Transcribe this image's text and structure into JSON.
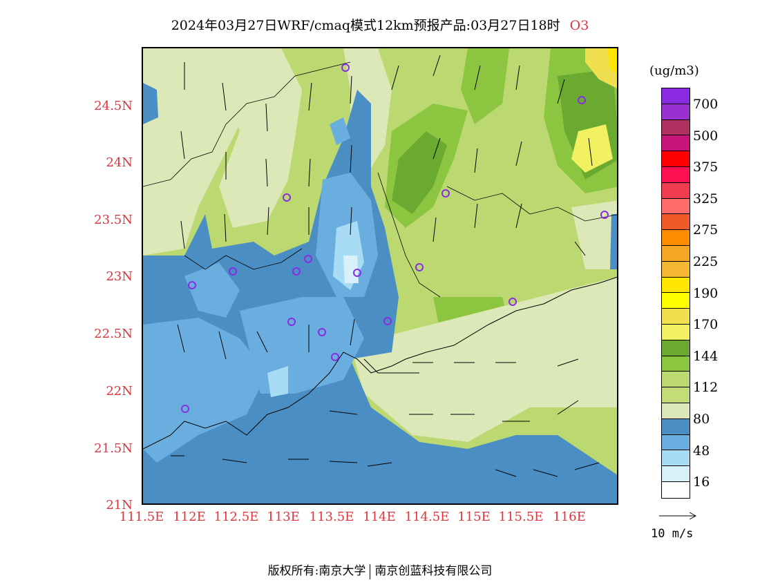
{
  "title": {
    "main": "2024年03月27日WRF/cmaq模式12km预报产品:03月27日18时",
    "species": "O3"
  },
  "axes": {
    "y_labels": [
      "24.5N",
      "24N",
      "23.5N",
      "23N",
      "22.5N",
      "22N",
      "21.5N",
      "21N"
    ],
    "x_labels": [
      "111.5E",
      "112E",
      "112.5E",
      "113E",
      "113.5E",
      "114E",
      "114.5E",
      "115E",
      "115.5E",
      "116E"
    ]
  },
  "legend": {
    "unit": "(ug/m3)",
    "levels": [
      {
        "label": "700",
        "color": "#8a2be2"
      },
      {
        "label": "",
        "color": "#9b30d0"
      },
      {
        "label": "500",
        "color": "#b03060"
      },
      {
        "label": "",
        "color": "#c8147a"
      },
      {
        "label": "375",
        "color": "#ff0000"
      },
      {
        "label": "",
        "color": "#ff1050"
      },
      {
        "label": "325",
        "color": "#f03c50"
      },
      {
        "label": "",
        "color": "#ff6a6a"
      },
      {
        "label": "275",
        "color": "#ee5a2a"
      },
      {
        "label": "",
        "color": "#ff8c00"
      },
      {
        "label": "225",
        "color": "#f5a623"
      },
      {
        "label": "",
        "color": "#f7b733"
      },
      {
        "label": "190",
        "color": "#ffe500"
      },
      {
        "label": "",
        "color": "#ffff00"
      },
      {
        "label": "170",
        "color": "#f0e050"
      },
      {
        "label": "",
        "color": "#f0f060"
      },
      {
        "label": "144",
        "color": "#6aaa30"
      },
      {
        "label": "",
        "color": "#8cc640"
      },
      {
        "label": "112",
        "color": "#bcd870"
      },
      {
        "label": "",
        "color": "#c4dc78"
      },
      {
        "label": "80",
        "color": "#dde8b8"
      },
      {
        "label": "",
        "color": "#4a8ec4"
      },
      {
        "label": "48",
        "color": "#6aaee0"
      },
      {
        "label": "",
        "color": "#a8dcf4"
      },
      {
        "label": "16",
        "color": "#d8f0fa"
      },
      {
        "label": "",
        "color": "#ffffff"
      }
    ]
  },
  "wind_reference": {
    "label": "10 m/s"
  },
  "footer": {
    "left": "版权所有:南京大学",
    "right": "南京创蓝科技有限公司"
  },
  "colors": {
    "label_red": "#e0343c",
    "station_circle": "#8a2be2"
  }
}
